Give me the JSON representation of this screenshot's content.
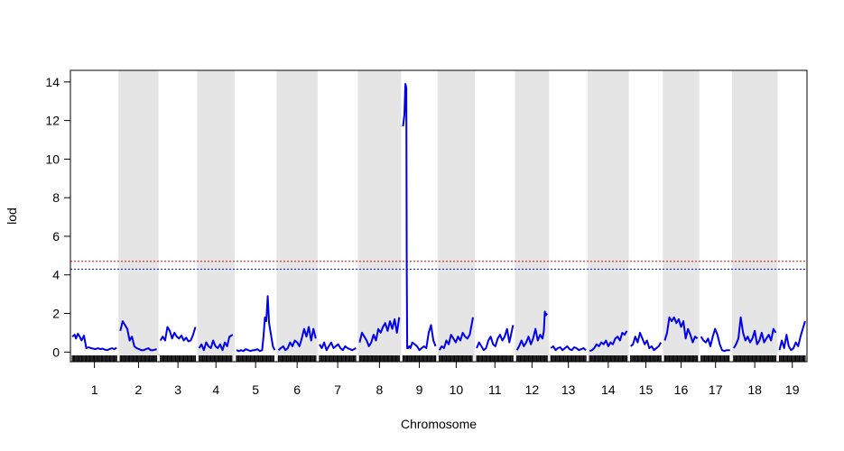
{
  "chart_data": {
    "type": "line",
    "title": "",
    "xlabel": "Chromosome",
    "ylabel": "lod",
    "ylim": [
      -0.5,
      14.6
    ],
    "yticks": [
      0,
      2,
      4,
      6,
      8,
      10,
      12,
      14
    ],
    "grid": false,
    "alternating_band_color": "#e5e5e5",
    "line_color": "#0000ee",
    "chromosomes": [
      {
        "label": "1",
        "length": 95,
        "x": [
          0,
          5,
          8,
          12,
          16,
          20,
          25,
          30,
          35,
          40,
          45,
          50,
          55,
          60,
          65,
          70,
          75,
          80,
          85,
          90,
          95
        ],
        "lod": [
          0.8,
          0.9,
          0.7,
          0.95,
          0.8,
          0.6,
          0.85,
          0.2,
          0.25,
          0.2,
          0.18,
          0.15,
          0.2,
          0.15,
          0.18,
          0.12,
          0.1,
          0.15,
          0.2,
          0.15,
          0.22
        ]
      },
      {
        "label": "2",
        "length": 78,
        "x": [
          0,
          5,
          10,
          15,
          20,
          25,
          30,
          35,
          40,
          45,
          50,
          55,
          60,
          65,
          70,
          78
        ],
        "lod": [
          1.1,
          1.6,
          1.4,
          1.2,
          0.6,
          0.8,
          0.3,
          0.2,
          0.15,
          0.1,
          0.1,
          0.15,
          0.2,
          0.1,
          0.1,
          0.15
        ]
      },
      {
        "label": "3",
        "length": 75,
        "x": [
          0,
          5,
          10,
          15,
          20,
          25,
          30,
          35,
          40,
          45,
          50,
          55,
          60,
          65,
          70,
          75
        ],
        "lod": [
          0.6,
          0.8,
          0.6,
          1.3,
          1.1,
          0.7,
          1.0,
          0.8,
          0.7,
          0.85,
          0.6,
          0.75,
          0.55,
          0.6,
          0.9,
          1.3
        ]
      },
      {
        "label": "4",
        "length": 72,
        "x": [
          0,
          5,
          10,
          15,
          20,
          25,
          30,
          35,
          40,
          45,
          50,
          55,
          60,
          65,
          72
        ],
        "lod": [
          0.2,
          0.4,
          0.1,
          0.5,
          0.3,
          0.2,
          0.6,
          0.3,
          0.2,
          0.4,
          0.1,
          0.5,
          0.3,
          0.8,
          0.9
        ]
      },
      {
        "label": "5",
        "length": 82,
        "x": [
          0,
          5,
          10,
          15,
          20,
          25,
          30,
          35,
          40,
          45,
          50,
          55,
          58,
          61,
          64,
          67,
          70,
          74,
          78,
          82
        ],
        "lod": [
          0.1,
          0.05,
          0.1,
          0.05,
          0.15,
          0.1,
          0.05,
          0.1,
          0.1,
          0.15,
          0.05,
          0.1,
          0.8,
          1.8,
          1.6,
          2.9,
          1.5,
          0.9,
          0.3,
          0.1
        ]
      },
      {
        "label": "6",
        "length": 80,
        "x": [
          0,
          5,
          10,
          15,
          20,
          25,
          30,
          35,
          40,
          45,
          50,
          55,
          60,
          65,
          70,
          75,
          80
        ],
        "lod": [
          0.1,
          0.2,
          0.3,
          0.1,
          0.2,
          0.5,
          0.3,
          0.6,
          0.5,
          0.3,
          0.7,
          1.2,
          0.8,
          1.3,
          0.6,
          1.2,
          0.7
        ]
      },
      {
        "label": "7",
        "length": 78,
        "x": [
          0,
          5,
          10,
          15,
          20,
          25,
          30,
          35,
          40,
          45,
          50,
          55,
          60,
          65,
          70,
          78
        ],
        "lod": [
          0.4,
          0.2,
          0.5,
          0.1,
          0.3,
          0.5,
          0.2,
          0.3,
          0.4,
          0.2,
          0.1,
          0.3,
          0.2,
          0.15,
          0.1,
          0.2
        ]
      },
      {
        "label": "8",
        "length": 85,
        "x": [
          0,
          5,
          10,
          15,
          20,
          25,
          30,
          35,
          40,
          45,
          50,
          55,
          60,
          65,
          70,
          75,
          80,
          85
        ],
        "lod": [
          0.5,
          1.0,
          0.8,
          0.6,
          0.3,
          0.5,
          0.9,
          0.6,
          1.2,
          1.0,
          1.3,
          1.5,
          1.1,
          1.6,
          1.2,
          1.7,
          1.0,
          1.8
        ]
      },
      {
        "label": "9",
        "length": 70,
        "x": [
          0,
          3,
          5,
          7,
          8,
          9,
          10,
          11,
          12,
          14,
          16,
          20,
          25,
          30,
          35,
          40,
          45,
          50,
          55,
          60,
          65,
          70
        ],
        "lod": [
          11.7,
          12.3,
          13.9,
          13.7,
          4.5,
          0.2,
          0.3,
          0.2,
          0.25,
          0.3,
          0.2,
          0.5,
          0.4,
          0.3,
          0.1,
          0.2,
          0.3,
          0.2,
          1.0,
          1.4,
          0.6,
          0.3
        ]
      },
      {
        "label": "10",
        "length": 72,
        "x": [
          0,
          5,
          10,
          15,
          20,
          25,
          30,
          35,
          40,
          45,
          50,
          55,
          60,
          65,
          72
        ],
        "lod": [
          0.1,
          0.3,
          0.2,
          0.6,
          0.4,
          0.9,
          0.7,
          0.5,
          0.8,
          0.6,
          1.0,
          0.8,
          0.7,
          0.9,
          1.8
        ]
      },
      {
        "label": "11",
        "length": 78,
        "x": [
          0,
          5,
          10,
          15,
          20,
          25,
          30,
          35,
          40,
          45,
          50,
          55,
          60,
          65,
          70,
          78
        ],
        "lod": [
          0.2,
          0.5,
          0.3,
          0.1,
          0.2,
          0.6,
          0.8,
          0.4,
          0.3,
          0.7,
          0.9,
          0.6,
          0.8,
          1.2,
          0.5,
          1.4
        ]
      },
      {
        "label": "12",
        "length": 65,
        "x": [
          0,
          5,
          10,
          15,
          20,
          25,
          30,
          35,
          40,
          45,
          50,
          55,
          58,
          60,
          62,
          65
        ],
        "lod": [
          0.1,
          0.3,
          0.6,
          0.3,
          0.5,
          0.8,
          0.4,
          0.7,
          1.2,
          0.6,
          0.9,
          0.7,
          1.1,
          2.1,
          1.9,
          2.0
        ]
      },
      {
        "label": "13",
        "length": 75,
        "x": [
          0,
          5,
          10,
          15,
          20,
          25,
          30,
          35,
          40,
          45,
          50,
          55,
          60,
          65,
          70,
          75
        ],
        "lod": [
          0.2,
          0.3,
          0.1,
          0.2,
          0.25,
          0.1,
          0.2,
          0.3,
          0.15,
          0.1,
          0.25,
          0.2,
          0.1,
          0.15,
          0.2,
          0.1
        ]
      },
      {
        "label": "14",
        "length": 80,
        "x": [
          0,
          5,
          10,
          15,
          20,
          25,
          30,
          35,
          40,
          45,
          50,
          55,
          60,
          65,
          70,
          75,
          80
        ],
        "lod": [
          0.05,
          0.1,
          0.2,
          0.4,
          0.3,
          0.5,
          0.4,
          0.6,
          0.3,
          0.5,
          0.4,
          0.7,
          0.8,
          0.6,
          1.0,
          0.9,
          1.1
        ]
      },
      {
        "label": "15",
        "length": 65,
        "x": [
          0,
          5,
          10,
          15,
          20,
          25,
          30,
          35,
          40,
          45,
          50,
          55,
          60,
          65
        ],
        "lod": [
          0.3,
          0.4,
          0.8,
          0.5,
          1.0,
          0.7,
          0.4,
          0.6,
          0.2,
          0.3,
          0.1,
          0.2,
          0.3,
          0.5
        ]
      },
      {
        "label": "16",
        "length": 70,
        "x": [
          0,
          5,
          10,
          15,
          20,
          25,
          30,
          35,
          40,
          45,
          50,
          55,
          60,
          65,
          70
        ],
        "lod": [
          0.6,
          1.0,
          1.8,
          1.6,
          1.8,
          1.5,
          1.7,
          1.3,
          1.6,
          0.7,
          1.2,
          0.9,
          0.5,
          0.8,
          0.7
        ]
      },
      {
        "label": "17",
        "length": 62,
        "x": [
          0,
          5,
          10,
          15,
          20,
          25,
          30,
          35,
          40,
          45,
          50,
          55,
          62
        ],
        "lod": [
          0.8,
          0.6,
          0.5,
          0.7,
          0.3,
          0.8,
          1.2,
          0.9,
          0.4,
          0.1,
          0.05,
          0.1,
          0.1
        ]
      },
      {
        "label": "18",
        "length": 90,
        "x": [
          0,
          5,
          10,
          15,
          20,
          25,
          30,
          35,
          40,
          45,
          50,
          55,
          60,
          65,
          70,
          75,
          80,
          85,
          90
        ],
        "lod": [
          0.2,
          0.4,
          0.7,
          1.8,
          1.0,
          0.6,
          0.8,
          0.5,
          0.7,
          1.1,
          0.4,
          0.6,
          1.0,
          0.5,
          0.7,
          0.9,
          0.6,
          1.2,
          1.0
        ]
      },
      {
        "label": "19",
        "length": 55,
        "x": [
          0,
          5,
          10,
          15,
          20,
          25,
          30,
          35,
          40,
          45,
          50,
          55
        ],
        "lod": [
          0.1,
          0.6,
          0.2,
          0.9,
          0.3,
          0.1,
          0.2,
          0.5,
          0.3,
          0.8,
          1.2,
          1.6
        ]
      }
    ],
    "thresholds": [
      {
        "value": 4.7,
        "color": "#ff0000",
        "style": "dotted"
      },
      {
        "value": 4.3,
        "color": "#0000ff",
        "style": "dotted"
      }
    ]
  }
}
